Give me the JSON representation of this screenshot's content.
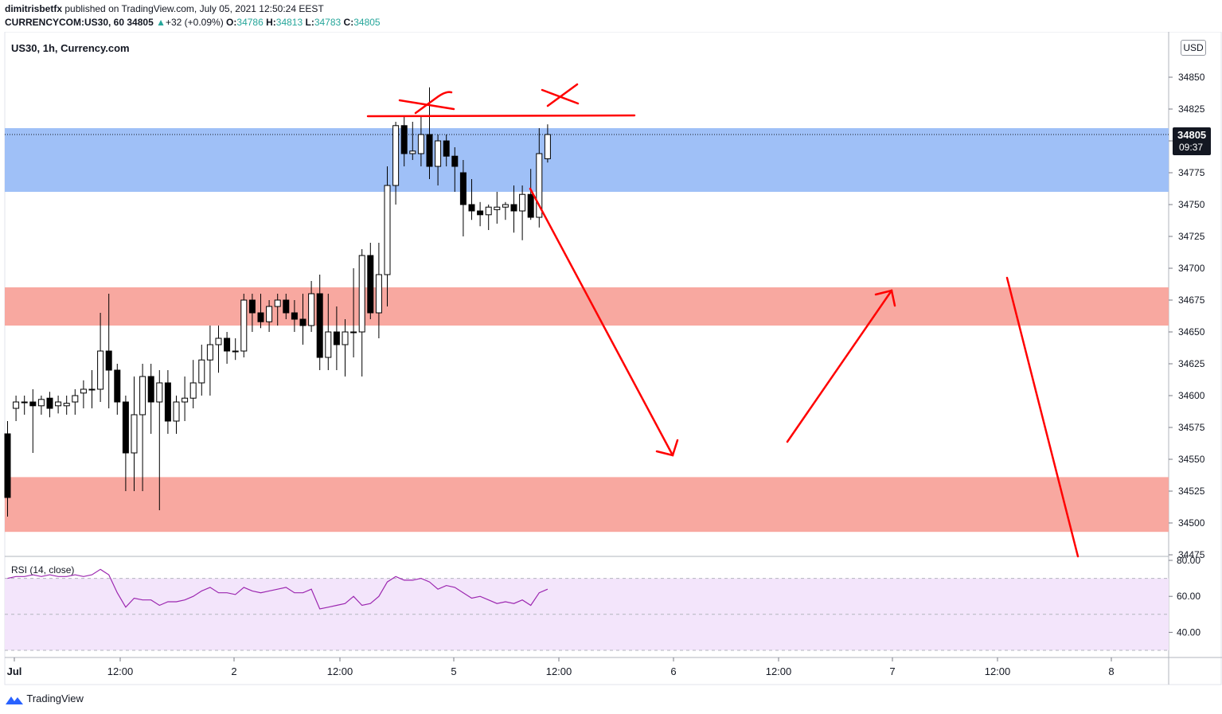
{
  "header": {
    "publisher": "dimitrisbetfx",
    "published_text": "published on TradingView.com, July 05, 2021 12:50:24 EEST",
    "symbol_line": "CURRENCYCOM:US30, 60",
    "last": "34805",
    "change": "+32 (+0.09%)",
    "o_label": "O:",
    "o": "34786",
    "h_label": "H:",
    "h": "34813",
    "l_label": "L:",
    "l": "34783",
    "c_label": "C:",
    "c": "34805"
  },
  "pane_title": "US30, 1h, Currency.com",
  "currency_button": "USD",
  "price_tag": {
    "price": "34805",
    "countdown": "09:37"
  },
  "rsi_title": "RSI (14, close)",
  "brand": "TradingView",
  "colors": {
    "candle": "#000000",
    "resistance_zone": "#9fc0f7",
    "support_zone": "#f8a8a0",
    "rsi_line": "#9c27b0",
    "rsi_band": "#f3e5fb",
    "annotation": "#ff0000"
  },
  "chart_data": {
    "type": "candlestick",
    "timeframe": "1h",
    "y_ticks": [
      "34850",
      "34825",
      "34800",
      "34775",
      "34750",
      "34725",
      "34700",
      "34675",
      "34650",
      "34625",
      "34600",
      "34575",
      "34550",
      "34525",
      "34500",
      "34475"
    ],
    "ylim": [
      34473,
      34865
    ],
    "x_ticks": [
      "Jul",
      "12:00",
      "2",
      "12:00",
      "5",
      "12:00",
      "6",
      "12:00",
      "7",
      "12:00",
      "8"
    ],
    "candles": [
      [
        34570,
        34580,
        34505,
        34520
      ],
      [
        34590,
        34600,
        34580,
        34595
      ],
      [
        34595,
        34600,
        34585,
        34595
      ],
      [
        34595,
        34605,
        34555,
        34592
      ],
      [
        34592,
        34600,
        34585,
        34597
      ],
      [
        34598,
        34603,
        34583,
        34590
      ],
      [
        34592,
        34600,
        34586,
        34595
      ],
      [
        34592,
        34600,
        34585,
        34594
      ],
      [
        34595,
        34605,
        34585,
        34600
      ],
      [
        34602,
        34612,
        34590,
        34605
      ],
      [
        34605,
        34620,
        34590,
        34605
      ],
      [
        34605,
        34665,
        34595,
        34635
      ],
      [
        34635,
        34680,
        34590,
        34620
      ],
      [
        34620,
        34625,
        34585,
        34595
      ],
      [
        34595,
        34600,
        34525,
        34555
      ],
      [
        34555,
        34615,
        34525,
        34585
      ],
      [
        34585,
        34625,
        34525,
        34615
      ],
      [
        34615,
        34625,
        34570,
        34595
      ],
      [
        34595,
        34620,
        34510,
        34610
      ],
      [
        34610,
        34620,
        34570,
        34580
      ],
      [
        34580,
        34600,
        34570,
        34595
      ],
      [
        34595,
        34615,
        34580,
        34598
      ],
      [
        34598,
        34628,
        34590,
        34610
      ],
      [
        34610,
        34640,
        34600,
        34628
      ],
      [
        34628,
        34655,
        34600,
        34640
      ],
      [
        34640,
        34655,
        34618,
        34645
      ],
      [
        34645,
        34650,
        34625,
        34635
      ],
      [
        34635,
        34645,
        34628,
        34635
      ],
      [
        34635,
        34680,
        34630,
        34675
      ],
      [
        34675,
        34680,
        34650,
        34665
      ],
      [
        34665,
        34680,
        34653,
        34658
      ],
      [
        34658,
        34675,
        34650,
        34670
      ],
      [
        34670,
        34680,
        34655,
        34675
      ],
      [
        34675,
        34680,
        34660,
        34665
      ],
      [
        34665,
        34675,
        34650,
        34660
      ],
      [
        34660,
        34680,
        34640,
        34655
      ],
      [
        34655,
        34690,
        34650,
        34680
      ],
      [
        34680,
        34695,
        34620,
        34630
      ],
      [
        34630,
        34680,
        34620,
        34650
      ],
      [
        34650,
        34670,
        34620,
        34640
      ],
      [
        34640,
        34660,
        34615,
        34650
      ],
      [
        34650,
        34700,
        34630,
        34650
      ],
      [
        34650,
        34715,
        34615,
        34710
      ],
      [
        34710,
        34720,
        34660,
        34665
      ],
      [
        34665,
        34720,
        34645,
        34695
      ],
      [
        34695,
        34780,
        34670,
        34765
      ],
      [
        34765,
        34815,
        34750,
        34812
      ],
      [
        34812,
        34820,
        34780,
        34790
      ],
      [
        34790,
        34815,
        34785,
        34792
      ],
      [
        34790,
        34820,
        34780,
        34805
      ],
      [
        34805,
        34842,
        34770,
        34780
      ],
      [
        34780,
        34805,
        34765,
        34800
      ],
      [
        34800,
        34805,
        34780,
        34788
      ],
      [
        34788,
        34795,
        34760,
        34780
      ],
      [
        34775,
        34785,
        34725,
        34750
      ],
      [
        34750,
        34770,
        34738,
        34745
      ],
      [
        34745,
        34752,
        34733,
        34742
      ],
      [
        34742,
        34750,
        34730,
        34748
      ],
      [
        34746,
        34760,
        34735,
        34748
      ],
      [
        34748,
        34752,
        34738,
        34750
      ],
      [
        34750,
        34765,
        34728,
        34745
      ],
      [
        34745,
        34765,
        34722,
        34758
      ],
      [
        34758,
        34778,
        34738,
        34740
      ],
      [
        34740,
        34810,
        34732,
        34790
      ],
      [
        34786,
        34813,
        34783,
        34805
      ]
    ],
    "zones": [
      {
        "from": 34760,
        "to": 34810
      },
      {
        "from": 34655,
        "to": 34685
      },
      {
        "from": 34493,
        "to": 34536
      }
    ],
    "rsi": {
      "ylim": [
        28,
        82
      ],
      "levels": [
        70,
        50,
        30
      ],
      "ticks": [
        "80.00",
        "60.00",
        "40.00"
      ],
      "values": [
        70,
        71,
        71,
        72,
        71,
        72,
        71,
        71,
        72,
        71,
        72,
        75,
        72,
        62,
        54,
        59,
        58,
        58,
        55,
        57,
        57,
        58,
        60,
        63,
        65,
        62,
        62,
        61,
        65,
        63,
        62,
        63,
        64,
        65,
        62,
        62,
        64,
        53,
        54,
        55,
        56,
        60,
        55,
        56,
        60,
        68,
        71,
        69,
        69,
        70,
        68,
        64,
        66,
        65,
        62,
        59,
        60,
        58,
        56,
        57,
        56,
        58,
        55,
        62,
        64
      ]
    }
  }
}
